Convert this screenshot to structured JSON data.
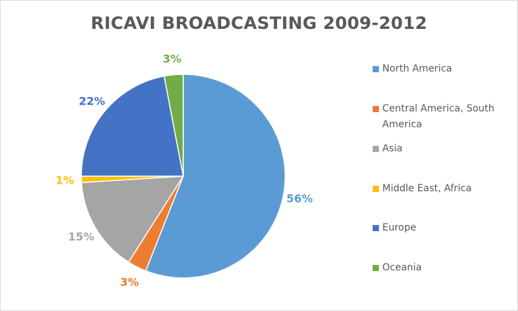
{
  "chart_data": {
    "type": "pie",
    "title": "RICAVI BROADCASTING 2009-2012",
    "legend_position": "right",
    "slices": [
      {
        "label": "North America",
        "value": 56,
        "display": "56%",
        "color": "#5B9BD5"
      },
      {
        "label": "Central America, South America",
        "value": 3,
        "display": "3%",
        "color": "#ED7D31"
      },
      {
        "label": "Asia",
        "value": 15,
        "display": "15%",
        "color": "#A5A5A5"
      },
      {
        "label": "Middle East, Africa",
        "value": 1,
        "display": "1%",
        "color": "#FFC000"
      },
      {
        "label": "Europe",
        "value": 22,
        "display": "22%",
        "color": "#4472C4"
      },
      {
        "label": "Oceania",
        "value": 3,
        "display": "3%",
        "color": "#70AD47"
      }
    ]
  }
}
